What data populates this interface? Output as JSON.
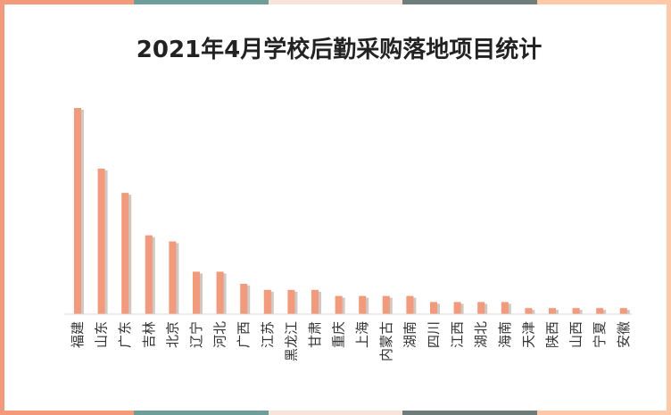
{
  "chart_data": {
    "type": "bar",
    "title": "2021年4月学校后勤采购落地项目统计",
    "xlabel": "",
    "ylabel": "",
    "ylim": [
      0,
      34
    ],
    "grid": false,
    "legend": "none",
    "categories": [
      "福建",
      "山东",
      "广东",
      "吉林",
      "北京",
      "辽宁",
      "河北",
      "广西",
      "江苏",
      "黑龙江",
      "甘肃",
      "重庆",
      "上海",
      "内蒙古",
      "湖南",
      "四川",
      "江西",
      "湖北",
      "海南",
      "天津",
      "陕西",
      "山西",
      "宁夏",
      "安徽"
    ],
    "values": [
      34,
      24,
      20,
      13,
      12,
      7,
      7,
      5,
      4,
      4,
      4,
      3,
      3,
      3,
      3,
      2,
      2,
      2,
      2,
      1,
      1,
      1,
      1,
      1
    ]
  },
  "colors": {
    "bar": "#F4997A",
    "bar_shadow": "#A89C92",
    "axis": "#D9D9D9",
    "border_segments": [
      "#F4997A",
      "#6E9E9A",
      "#F8E4D8",
      "#6E7C7A",
      "#FFC8A8"
    ]
  }
}
